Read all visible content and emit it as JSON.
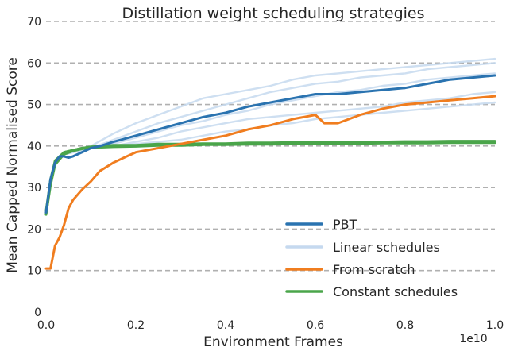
{
  "chart_data": {
    "type": "line",
    "title": "Distillation weight scheduling strategies",
    "xlabel": "Environment Frames",
    "ylabel": "Mean Capped Normalised Score",
    "x_offset_text": "1e10",
    "xlim": [
      0.0,
      1.0
    ],
    "ylim": [
      0,
      70
    ],
    "x_ticks": [
      "0.0",
      "0.2",
      "0.4",
      "0.6",
      "0.8",
      "1.0"
    ],
    "y_ticks": [
      "0",
      "10",
      "20",
      "30",
      "40",
      "50",
      "60",
      "70"
    ],
    "grid": "horizontal-dashed",
    "legend_position": "bottom-right",
    "legend": [
      {
        "label": "PBT",
        "color": "#2a73b0"
      },
      {
        "label": "Linear schedules",
        "color": "#c5d9ef"
      },
      {
        "label": "From scratch",
        "color": "#f07d1f"
      },
      {
        "label": "Constant schedules",
        "color": "#4aa54a"
      }
    ],
    "series": [
      {
        "name": "Linear schedules",
        "color": "#c5d9ef",
        "x": [
          0.0,
          0.01,
          0.02,
          0.04,
          0.06,
          0.08,
          0.1,
          0.15,
          0.2,
          0.25,
          0.3,
          0.35,
          0.4,
          0.45,
          0.5,
          0.55,
          0.6,
          0.65,
          0.7,
          0.75,
          0.8,
          0.85,
          0.9,
          0.95,
          1.0
        ],
        "y": [
          24,
          32,
          36,
          38,
          38.5,
          39.5,
          40,
          43,
          45.5,
          47.5,
          49.5,
          51.5,
          52.5,
          53.5,
          54.5,
          56,
          57,
          57.5,
          58,
          58.5,
          59,
          59.5,
          60,
          60.5,
          61
        ]
      },
      {
        "name": "Linear schedules",
        "color": "#c5d9ef",
        "x": [
          0.0,
          0.01,
          0.02,
          0.04,
          0.06,
          0.08,
          0.1,
          0.15,
          0.2,
          0.25,
          0.3,
          0.35,
          0.4,
          0.45,
          0.5,
          0.55,
          0.6,
          0.65,
          0.7,
          0.75,
          0.8,
          0.85,
          0.9,
          0.95,
          1.0
        ],
        "y": [
          24,
          32,
          36,
          38,
          38.5,
          39,
          39.5,
          41.5,
          43.5,
          45.5,
          47,
          48.5,
          50,
          51.5,
          53,
          54,
          55,
          55.5,
          56.5,
          57,
          57.5,
          58.5,
          59,
          59.5,
          60
        ]
      },
      {
        "name": "Linear schedules",
        "color": "#c5d9ef",
        "x": [
          0.0,
          0.01,
          0.02,
          0.04,
          0.06,
          0.08,
          0.1,
          0.15,
          0.2,
          0.25,
          0.3,
          0.35,
          0.4,
          0.45,
          0.5,
          0.55,
          0.6,
          0.65,
          0.7,
          0.75,
          0.8,
          0.85,
          0.9,
          0.95,
          1.0
        ],
        "y": [
          24,
          32,
          36,
          38,
          38.5,
          39,
          39.5,
          40.5,
          42,
          43.5,
          45,
          46,
          47.5,
          48.5,
          50,
          51,
          52,
          53,
          53.5,
          54.5,
          55,
          56,
          56.5,
          57,
          57.5
        ]
      },
      {
        "name": "Linear schedules",
        "color": "#c5d9ef",
        "x": [
          0.0,
          0.01,
          0.02,
          0.04,
          0.06,
          0.08,
          0.1,
          0.15,
          0.2,
          0.25,
          0.3,
          0.35,
          0.4,
          0.45,
          0.5,
          0.55,
          0.6,
          0.65,
          0.7,
          0.75,
          0.8,
          0.85,
          0.9,
          0.95,
          1.0
        ],
        "y": [
          24,
          32,
          36,
          38,
          38.5,
          39,
          39.5,
          40,
          41,
          42,
          43.5,
          44.5,
          45.5,
          46.5,
          47,
          47.5,
          48,
          48.5,
          49,
          49.5,
          50.5,
          51,
          51.5,
          52.5,
          53
        ]
      },
      {
        "name": "Linear schedules",
        "color": "#c5d9ef",
        "x": [
          0.0,
          0.01,
          0.02,
          0.04,
          0.06,
          0.08,
          0.1,
          0.15,
          0.2,
          0.25,
          0.3,
          0.35,
          0.4,
          0.45,
          0.5,
          0.55,
          0.6,
          0.65,
          0.7,
          0.75,
          0.8,
          0.85,
          0.9,
          0.95,
          1.0
        ],
        "y": [
          24,
          32,
          36,
          38,
          38.5,
          39,
          39.5,
          40,
          40.5,
          41,
          41.5,
          42.5,
          43.5,
          44,
          45,
          45.5,
          46.5,
          47,
          47.5,
          48,
          48.5,
          49,
          49.5,
          50,
          50.5
        ]
      },
      {
        "name": "Constant schedules",
        "color": "#4aa54a",
        "x": [
          0.0,
          0.01,
          0.02,
          0.04,
          0.06,
          0.08,
          0.1,
          0.15,
          0.2,
          0.25,
          0.3,
          0.35,
          0.4,
          0.45,
          0.5,
          0.55,
          0.6,
          0.65,
          0.7,
          0.75,
          0.8,
          0.85,
          0.9,
          0.95,
          1.0
        ],
        "y": [
          23.5,
          31,
          36,
          38.5,
          39,
          39.5,
          39.8,
          40,
          40,
          40.3,
          40.3,
          40.5,
          40.5,
          40.6,
          40.6,
          40.7,
          40.7,
          40.8,
          40.8,
          40.8,
          40.9,
          40.9,
          41,
          41,
          41
        ]
      },
      {
        "name": "Constant schedules",
        "color": "#4aa54a",
        "x": [
          0.0,
          0.01,
          0.02,
          0.04,
          0.06,
          0.08,
          0.1,
          0.15,
          0.2,
          0.25,
          0.3,
          0.35,
          0.4,
          0.45,
          0.5,
          0.55,
          0.6,
          0.65,
          0.7,
          0.75,
          0.8,
          0.85,
          0.9,
          0.95,
          1.0
        ],
        "y": [
          24.5,
          32,
          36.5,
          38.5,
          39,
          39.5,
          39.8,
          40.2,
          40.2,
          40.5,
          40.5,
          40.6,
          40.6,
          40.8,
          40.8,
          40.9,
          40.9,
          41,
          41,
          41,
          41.1,
          41.1,
          41.2,
          41.2,
          41.2
        ]
      },
      {
        "name": "Constant schedules",
        "color": "#4aa54a",
        "x": [
          0.0,
          0.01,
          0.02,
          0.04,
          0.06,
          0.08,
          0.1,
          0.15,
          0.2,
          0.25,
          0.3,
          0.35,
          0.4,
          0.45,
          0.5,
          0.55,
          0.6,
          0.65,
          0.7,
          0.75,
          0.8,
          0.85,
          0.9,
          0.95,
          1.0
        ],
        "y": [
          23.5,
          30.5,
          35.5,
          38,
          38.8,
          39.3,
          39.6,
          39.8,
          39.9,
          40.1,
          40.1,
          40.3,
          40.3,
          40.4,
          40.4,
          40.5,
          40.5,
          40.6,
          40.6,
          40.7,
          40.7,
          40.7,
          40.8,
          40.8,
          40.8
        ]
      },
      {
        "name": "PBT",
        "color": "#2a73b0",
        "x": [
          0.0,
          0.01,
          0.02,
          0.03,
          0.04,
          0.05,
          0.06,
          0.08,
          0.1,
          0.12,
          0.15,
          0.2,
          0.25,
          0.3,
          0.35,
          0.4,
          0.45,
          0.5,
          0.55,
          0.6,
          0.65,
          0.7,
          0.75,
          0.8,
          0.85,
          0.9,
          0.95,
          1.0
        ],
        "y": [
          24,
          32,
          36,
          37.5,
          37.5,
          37.2,
          37.5,
          38.5,
          39.5,
          40,
          41,
          42.5,
          44,
          45.5,
          47,
          48,
          49.5,
          50.5,
          51.5,
          52.5,
          52.5,
          53,
          53.5,
          54,
          55,
          56,
          56.5,
          57
        ]
      },
      {
        "name": "From scratch",
        "color": "#f07d1f",
        "x": [
          0.0,
          0.01,
          0.02,
          0.03,
          0.04,
          0.05,
          0.06,
          0.08,
          0.1,
          0.12,
          0.15,
          0.18,
          0.2,
          0.25,
          0.3,
          0.35,
          0.4,
          0.45,
          0.5,
          0.55,
          0.6,
          0.62,
          0.65,
          0.7,
          0.75,
          0.8,
          0.85,
          0.9,
          0.95,
          1.0
        ],
        "y": [
          10.5,
          10.5,
          16,
          18,
          21,
          25,
          27,
          29.5,
          31.5,
          34,
          36,
          37.5,
          38.5,
          39.5,
          40.5,
          41.5,
          42.5,
          44,
          45,
          46.5,
          47.5,
          45.5,
          45.5,
          47.5,
          49,
          50,
          50.5,
          51,
          51.5,
          52
        ]
      }
    ]
  }
}
